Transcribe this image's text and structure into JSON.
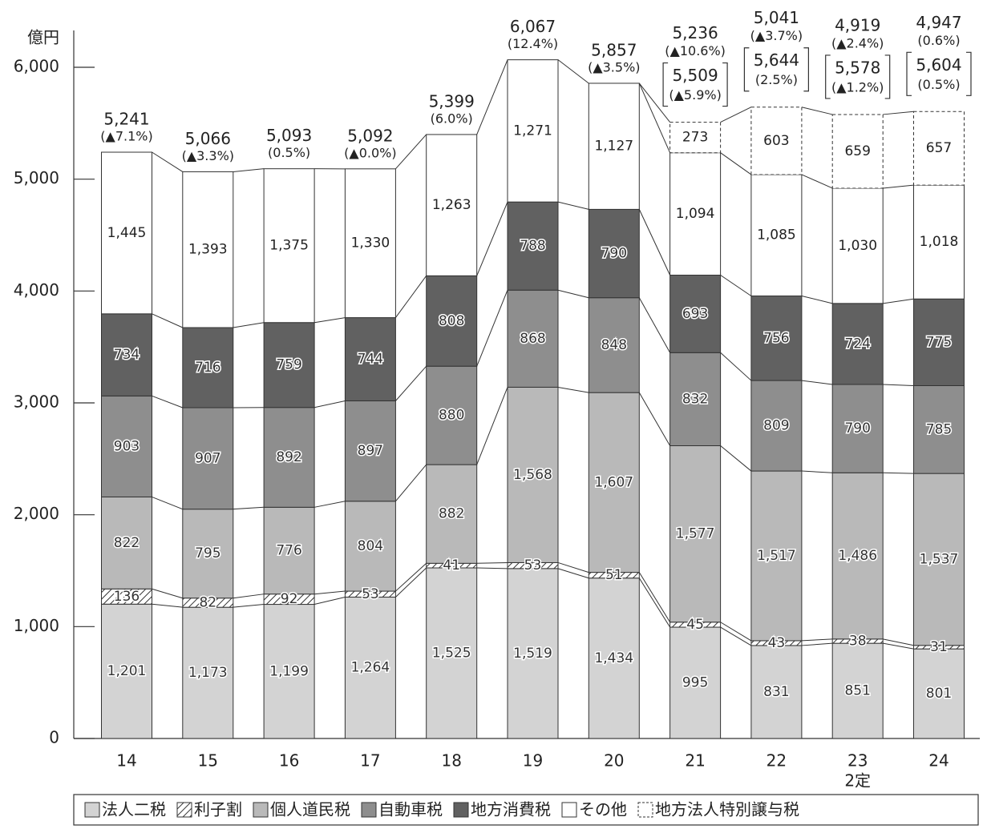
{
  "chart_data": {
    "type": "stacked_bar",
    "y_unit_label": "億円",
    "categories": [
      "14",
      "15",
      "16",
      "17",
      "18",
      "19",
      "20",
      "21",
      "22",
      "23",
      "24"
    ],
    "category_sublabels": [
      null,
      null,
      null,
      null,
      null,
      null,
      null,
      null,
      null,
      "2定",
      null
    ],
    "ylim": [
      0,
      6000
    ],
    "yticks": [
      0,
      {
        "value": 1000,
        "label": "1,000"
      },
      {
        "value": 2000,
        "label": "2,000"
      },
      {
        "value": 3000,
        "label": "3,000"
      },
      {
        "value": 4000,
        "label": "4,000"
      },
      {
        "value": 5000,
        "label": "5,000"
      },
      {
        "value": 6000,
        "label": "6,000"
      }
    ],
    "series": [
      {
        "name": "法人二税",
        "color": "#d3d3d3",
        "values": [
          1201,
          1173,
          1199,
          1264,
          1525,
          1519,
          1434,
          995,
          831,
          851,
          801
        ],
        "value_labels": [
          "1,201",
          "1,173",
          "1,199",
          "1,264",
          "1,525",
          "1,519",
          "1,434",
          "995",
          "831",
          "851",
          "801"
        ]
      },
      {
        "name": "利子割",
        "color": "hatch",
        "values": [
          136,
          82,
          92,
          53,
          41,
          53,
          51,
          45,
          43,
          38,
          31
        ]
      },
      {
        "name": "個人道民税",
        "color": "#b9b9b9",
        "values": [
          822,
          795,
          776,
          804,
          882,
          1568,
          1607,
          1577,
          1517,
          1486,
          1537
        ],
        "value_labels": [
          "822",
          "795",
          "776",
          "804",
          "882",
          "1,568",
          "1,607",
          "1,577",
          "1,517",
          "1,486",
          "1,537"
        ]
      },
      {
        "name": "自動車税",
        "color": "#8e8e8e",
        "values": [
          903,
          907,
          892,
          897,
          880,
          868,
          848,
          832,
          809,
          790,
          785
        ]
      },
      {
        "name": "地方消費税",
        "color": "#616161",
        "values": [
          734,
          716,
          759,
          744,
          808,
          788,
          790,
          693,
          756,
          724,
          775
        ]
      },
      {
        "name": "その他",
        "color": "#ffffff",
        "values": [
          1445,
          1393,
          1375,
          1330,
          1263,
          1271,
          1127,
          1094,
          1085,
          1030,
          1018
        ],
        "value_labels": [
          "1,445",
          "1,393",
          "1,375",
          "1,330",
          "1,263",
          "1,271",
          "1,127",
          "1,094",
          "1,085",
          "1,030",
          "1,018"
        ]
      },
      {
        "name": "地方法人特別譲与税",
        "color": "dashed",
        "values": [
          null,
          null,
          null,
          null,
          null,
          null,
          null,
          273,
          603,
          659,
          657
        ]
      }
    ],
    "totals": {
      "values": [
        5241,
        5066,
        5093,
        5092,
        5399,
        6067,
        5857,
        5236,
        5041,
        4919,
        4947
      ],
      "value_labels": [
        "5,241",
        "5,066",
        "5,093",
        "5,092",
        "5,399",
        "6,067",
        "5,857",
        "5,236",
        "5,041",
        "4,919",
        "4,947"
      ]
    },
    "changes": {
      "values": [
        -7.1,
        -3.3,
        0.5,
        -0.0,
        6.0,
        12.4,
        -3.5,
        -10.6,
        -3.7,
        -2.4,
        0.6
      ],
      "value_labels": [
        "(▲7.1%)",
        "(▲3.3%)",
        "(0.5%)",
        "(▲0.0%)",
        "(6.0%)",
        "(12.4%)",
        "(▲3.5%)",
        "(▲10.6%)",
        "(▲3.7%)",
        "(▲2.4%)",
        "(0.6%)"
      ]
    },
    "totals_with_transfer": {
      "values": [
        null,
        null,
        null,
        null,
        null,
        null,
        null,
        5509,
        5644,
        5578,
        5604
      ],
      "value_labels": [
        null,
        null,
        null,
        null,
        null,
        null,
        null,
        "5,509",
        "5,644",
        "5,578",
        "5,604"
      ]
    },
    "changes_with_transfer": {
      "values": [
        null,
        null,
        null,
        null,
        null,
        null,
        null,
        -5.9,
        2.5,
        -1.2,
        0.5
      ],
      "value_labels": [
        null,
        null,
        null,
        null,
        null,
        null,
        null,
        "(▲5.9%)",
        "(2.5%)",
        "(▲1.2%)",
        "(0.5%)"
      ]
    }
  }
}
